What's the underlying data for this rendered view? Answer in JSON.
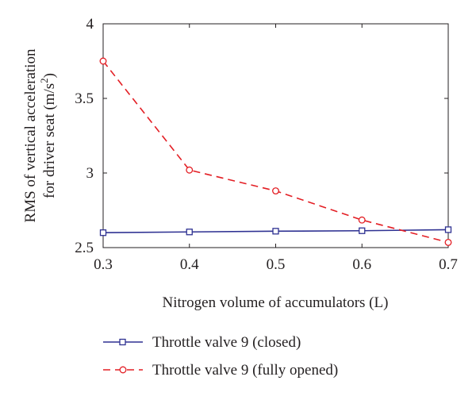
{
  "chart_data": {
    "type": "line",
    "xlabel": "Nitrogen volume of accumulators (L)",
    "ylabel_line1": "RMS of vertical acceleration",
    "ylabel_line2_prefix": "for driver seat (m/s",
    "ylabel_line2_sup": "2",
    "ylabel_line2_suffix": ")",
    "xlim": [
      0.3,
      0.7
    ],
    "ylim": [
      2.5,
      4.0
    ],
    "x_ticks": [
      "0.3",
      "0.4",
      "0.5",
      "0.6",
      "0.7"
    ],
    "y_ticks": [
      "2.5",
      "3",
      "3.5",
      "4"
    ],
    "x": [
      0.3,
      0.4,
      0.5,
      0.6,
      0.7
    ],
    "grid": false,
    "legend_position": "bottom",
    "series": [
      {
        "name": "Throttle valve 9 (closed)",
        "values": [
          2.6,
          2.605,
          2.61,
          2.613,
          2.62
        ],
        "color": "#2e3192",
        "line_style": "solid",
        "marker": "square"
      },
      {
        "name": "Throttle valve 9 (fully opened)",
        "values": [
          3.75,
          3.02,
          2.88,
          2.685,
          2.535
        ],
        "color": "#e31e24",
        "line_style": "dashed",
        "marker": "circle"
      }
    ]
  }
}
